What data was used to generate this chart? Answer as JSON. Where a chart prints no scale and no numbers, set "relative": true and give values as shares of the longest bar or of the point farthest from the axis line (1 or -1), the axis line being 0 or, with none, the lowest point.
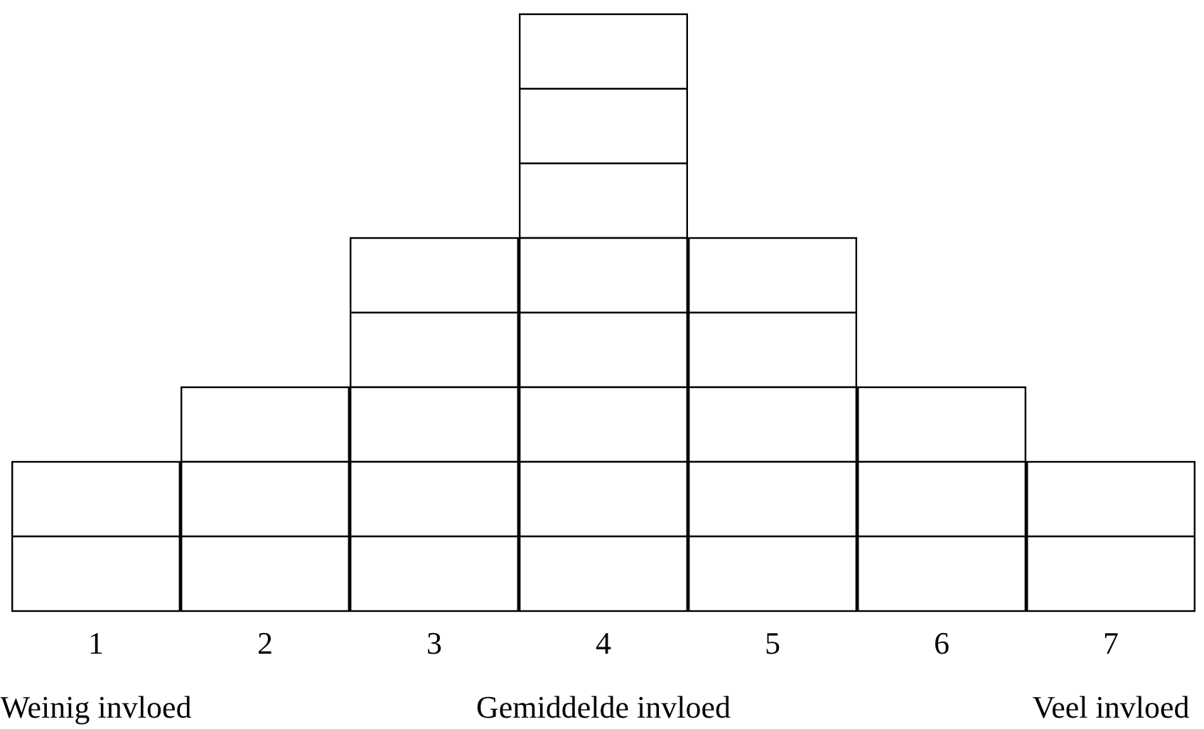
{
  "chart_data": {
    "type": "bar",
    "stacked": true,
    "relative": true,
    "categories": [
      "1",
      "2",
      "3",
      "4",
      "5",
      "6",
      "7"
    ],
    "series": [
      {
        "color": "#ffffff",
        "values": [
          0.125,
          0.125,
          0.125,
          0.125,
          0.125,
          0.125,
          0.125
        ]
      },
      {
        "color": "#ffffff",
        "values": [
          0.125,
          0.125,
          0.125,
          0.125,
          0.125,
          0.125,
          0.125
        ]
      },
      {
        "color": "#ffffff",
        "values": [
          null,
          0.125,
          0.125,
          0.125,
          0.125,
          0.125,
          null
        ]
      },
      {
        "color": "#ffffff",
        "values": [
          null,
          null,
          0.125,
          0.125,
          0.125,
          null,
          null
        ]
      },
      {
        "color": "#ffffff",
        "values": [
          null,
          null,
          0.125,
          0.125,
          0.125,
          null,
          null
        ]
      },
      {
        "color": "#ffffff",
        "values": [
          null,
          null,
          null,
          0.125,
          null,
          null,
          null
        ]
      },
      {
        "color": "#ffffff",
        "values": [
          null,
          null,
          null,
          0.125,
          null,
          null,
          null
        ]
      },
      {
        "color": "#ffffff",
        "values": [
          null,
          null,
          null,
          0.125,
          null,
          null,
          null
        ]
      }
    ],
    "annotations": [
      "Weinig invloed",
      "Gemiddelde invloed",
      "Veel invloed"
    ]
  }
}
